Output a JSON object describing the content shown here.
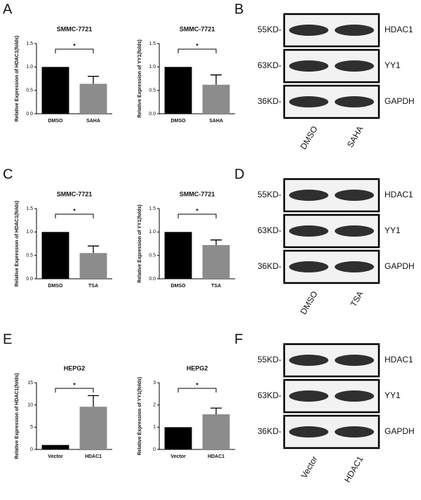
{
  "panels": [
    "A",
    "B",
    "C",
    "D",
    "E",
    "F"
  ],
  "chart_data": [
    {
      "type": "bar",
      "title": "SMMC-7721",
      "y_label": "Relative Expression of HDAC1(folds)",
      "categories": [
        "DMSO",
        "SAHA"
      ],
      "values": [
        1.0,
        0.64
      ],
      "errors": [
        null,
        0.16
      ],
      "colors": [
        "#000000",
        "#8c8c8c"
      ],
      "ylim": [
        0,
        1.5
      ],
      "yticks": [
        {
          "value": 0,
          "label": "0.0"
        },
        {
          "value": 0.5,
          "label": "0.5"
        },
        {
          "value": 1,
          "label": "1.0"
        },
        {
          "value": 1.5,
          "label": "1.5"
        }
      ],
      "annotation": "*"
    },
    {
      "type": "bar",
      "title": "SMMC-7721",
      "y_label": "Relative Expression of YY1(folds)",
      "categories": [
        "DMSO",
        "SAHA"
      ],
      "values": [
        1.0,
        0.62
      ],
      "errors": [
        null,
        0.21
      ],
      "colors": [
        "#000000",
        "#8c8c8c"
      ],
      "ylim": [
        0,
        1.5
      ],
      "yticks": [
        {
          "value": 0,
          "label": "0.0"
        },
        {
          "value": 0.5,
          "label": "0.5"
        },
        {
          "value": 1,
          "label": "1.0"
        },
        {
          "value": 1.5,
          "label": "1.5"
        }
      ],
      "annotation": "*"
    },
    {
      "type": "bar",
      "title": "SMMC-7721",
      "y_label": "Relative Expression of HDAC1(folds)",
      "categories": [
        "DMSO",
        "TSA"
      ],
      "values": [
        1.0,
        0.55
      ],
      "errors": [
        null,
        0.15
      ],
      "colors": [
        "#000000",
        "#8c8c8c"
      ],
      "ylim": [
        0,
        1.5
      ],
      "yticks": [
        {
          "value": 0,
          "label": "0.0"
        },
        {
          "value": 0.5,
          "label": "0.5"
        },
        {
          "value": 1,
          "label": "1.0"
        },
        {
          "value": 1.5,
          "label": "1.5"
        }
      ],
      "annotation": "*"
    },
    {
      "type": "bar",
      "title": "SMMC-7721",
      "y_label": "Relative Expression of YY1(folds)",
      "categories": [
        "DMSO",
        "TSA"
      ],
      "values": [
        1.0,
        0.72
      ],
      "errors": [
        null,
        0.11
      ],
      "colors": [
        "#000000",
        "#8c8c8c"
      ],
      "ylim": [
        0,
        1.5
      ],
      "yticks": [
        {
          "value": 0,
          "label": "0.0"
        },
        {
          "value": 0.5,
          "label": "0.5"
        },
        {
          "value": 1,
          "label": "1.0"
        },
        {
          "value": 1.5,
          "label": "1.5"
        }
      ],
      "annotation": "*"
    },
    {
      "type": "bar",
      "title": "HEPG2",
      "y_label": "Relative Expression of HDAC1(folds)",
      "categories": [
        "Vector",
        "HDAC1"
      ],
      "values": [
        1,
        9.6
      ],
      "errors": [
        null,
        2.5
      ],
      "colors": [
        "#000000",
        "#8c8c8c"
      ],
      "ylim": [
        0,
        15
      ],
      "yticks": [
        0,
        5,
        10,
        15
      ],
      "annotation": "*"
    },
    {
      "type": "bar",
      "title": "HEPG2",
      "y_label": "Relative Expression of YY1(folds)",
      "categories": [
        "Vector",
        "HDAC1"
      ],
      "values": [
        1,
        1.58
      ],
      "errors": [
        null,
        0.28
      ],
      "colors": [
        "#000000",
        "#8c8c8c"
      ],
      "ylim": [
        0,
        3
      ],
      "yticks": [
        0,
        1,
        2,
        3
      ],
      "annotation": "*"
    }
  ],
  "blots": [
    {
      "markers": [
        "55KD-",
        "63KD-",
        "36KD-"
      ],
      "proteins": [
        "HDAC1",
        "YY1",
        "GAPDH"
      ],
      "lanes": [
        "DMSO",
        "SAHA"
      ]
    },
    {
      "markers": [
        "55KD-",
        "63KD-",
        "36KD-"
      ],
      "proteins": [
        "HDAC1",
        "YY1",
        "GAPDH"
      ],
      "lanes": [
        "DMSO",
        "TSA"
      ]
    },
    {
      "markers": [
        "55KD-",
        "63KD-",
        "36KD-"
      ],
      "proteins": [
        "HDAC1",
        "YY1",
        "GAPDH"
      ],
      "lanes": [
        "Vector",
        "HDAC1"
      ]
    }
  ]
}
